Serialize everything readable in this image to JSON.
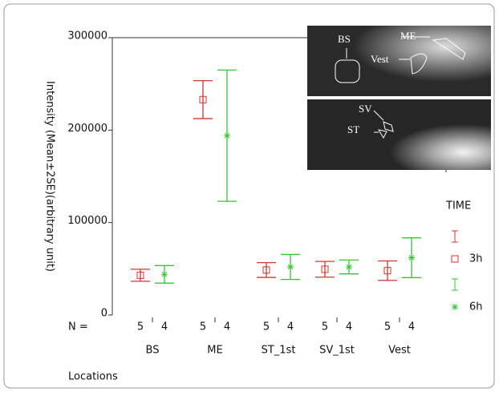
{
  "chart_data": {
    "type": "errorbar",
    "ylabel": "Intensity (Mean±2SE)(arbitrary unit)",
    "xlabel": "Locations",
    "n_label": "N =",
    "legend_title": "TIME",
    "categories": [
      "BS",
      "ME",
      "ST_1st",
      "SV_1st",
      "Vest"
    ],
    "series": [
      {
        "name": "3h",
        "color": "#d6342c",
        "marker": "square",
        "n": [
          5,
          5,
          5,
          5,
          5
        ],
        "values": [
          43000,
          233000,
          48700,
          49500,
          48000
        ],
        "errors": [
          6500,
          20500,
          8000,
          8500,
          10500
        ]
      },
      {
        "name": "6h",
        "color": "#33c633",
        "marker": "asterisk",
        "n": [
          4,
          4,
          4,
          4,
          4
        ],
        "values": [
          44000,
          194000,
          52000,
          52000,
          62000
        ],
        "errors": [
          9500,
          71000,
          13500,
          7500,
          21500
        ]
      }
    ],
    "ylim": [
      0,
      300000
    ],
    "yticks": [
      0,
      100000,
      200000,
      300000
    ],
    "legend": "right",
    "annotations": [
      "BS",
      "ME",
      "Vest",
      "SV",
      "ST"
    ]
  }
}
